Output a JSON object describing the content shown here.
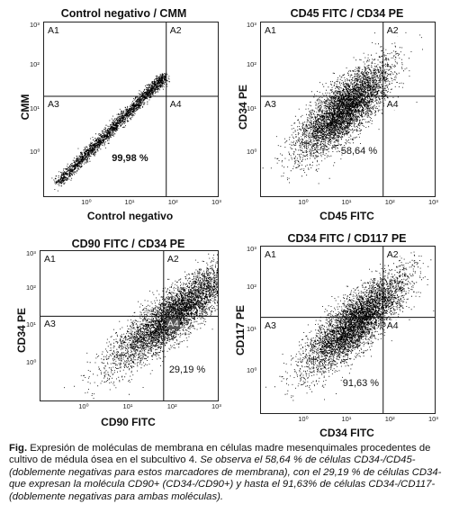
{
  "panels": [
    {
      "title": "Control negativo / CMM",
      "xlabel": "Control negativo",
      "ylabel": "CMM",
      "quadrants": [
        "A1",
        "A2",
        "A3",
        "A4"
      ],
      "percent": "99,98 %",
      "percent_quadrant": "A3",
      "y_ticks": [
        "10³",
        "10²",
        "10¹",
        "10⁰"
      ],
      "x_ticks": [
        "10⁰",
        "10¹",
        "10²",
        "10³"
      ]
    },
    {
      "title": "CD45 FITC / CD34 PE",
      "xlabel": "CD45 FITC",
      "ylabel": "CD34 PE",
      "quadrants": [
        "A1",
        "A2",
        "A3",
        "A4"
      ],
      "percent": "58,64 %",
      "percent_quadrant": "A3",
      "y_ticks": [
        "10³",
        "10²",
        "10¹",
        "10⁰"
      ],
      "x_ticks": [
        "10⁰",
        "10¹",
        "10²",
        "10³"
      ]
    },
    {
      "title": "CD90 FITC / CD34 PE",
      "xlabel": "CD90 FITC",
      "ylabel": "CD34 PE",
      "quadrants": [
        "A1",
        "A2",
        "A3",
        "A4"
      ],
      "percent": "29,19 %",
      "percent_quadrant": "A4",
      "y_ticks": [
        "10³",
        "10²",
        "10¹",
        "10⁰"
      ],
      "x_ticks": [
        "10⁰",
        "10¹",
        "10²",
        "10³"
      ]
    },
    {
      "title": "CD34 FITC / CD117 PE",
      "xlabel": "CD34 FITC",
      "ylabel": "CD117 PE",
      "quadrants": [
        "A1",
        "A2",
        "A3",
        "A4"
      ],
      "percent": "91,63 %",
      "percent_quadrant": "A3",
      "y_ticks": [
        "10³",
        "10²",
        "10¹",
        "10⁰"
      ],
      "x_ticks": [
        "10⁰",
        "10¹",
        "10²",
        "10³"
      ]
    }
  ],
  "caption": {
    "prefix": "Fig.",
    "normal": " Expresión  de moléculas de membrana en células madre mesenquimales procedentes de cultivo de médula ósea en el subcultivo 4. ",
    "italic": "Se observa el 58,64 % de células CD34-/CD45- (doblemente negativas para estos marcadores de membrana), con el 29,19 % de células CD34- que expresan la molécula CD90+ (CD34-/CD90+)  y hasta el 91,63% de células CD34-/CD117- (doblemente negativas para ambas moléculas)."
  },
  "chart_data": [
    {
      "type": "scatter",
      "title": "Control negativo / CMM",
      "xlabel": "Control negativo",
      "ylabel": "CMM",
      "scale": "log",
      "xlim": [
        0.1,
        1000
      ],
      "ylim": [
        0.1,
        1000
      ],
      "gate": {
        "x": 65,
        "y": 20
      },
      "population": {
        "shape": "diagonal",
        "x_range": [
          0.2,
          60
        ],
        "center": [
          1.5,
          1.5
        ]
      },
      "quadrant_percent": {
        "A3": 99.98
      }
    },
    {
      "type": "scatter",
      "title": "CD45 FITC / CD34 PE",
      "xlabel": "CD45 FITC",
      "ylabel": "CD34 PE",
      "scale": "log",
      "xlim": [
        0.1,
        1000
      ],
      "ylim": [
        0.1,
        1000
      ],
      "gate": {
        "x": 65,
        "y": 20
      },
      "population": {
        "shape": "cloud",
        "center": [
          8,
          10
        ],
        "spread": [
          1.6,
          1.6
        ]
      },
      "quadrant_percent": {
        "A3": 58.64
      }
    },
    {
      "type": "scatter",
      "title": "CD90 FITC / CD34 PE",
      "xlabel": "CD90 FITC",
      "ylabel": "CD34 PE",
      "scale": "log",
      "xlim": [
        0.1,
        1000
      ],
      "ylim": [
        0.1,
        1000
      ],
      "gate": {
        "x": 60,
        "y": 18
      },
      "population": {
        "shape": "cloud",
        "center": [
          100,
          20
        ],
        "spread": [
          2.2,
          2.0
        ]
      },
      "quadrant_percent": {
        "A4": 29.19
      }
    },
    {
      "type": "scatter",
      "title": "CD34 FITC / CD117 PE",
      "xlabel": "CD34 FITC",
      "ylabel": "CD117 PE",
      "scale": "log",
      "xlim": [
        0.1,
        1000
      ],
      "ylim": [
        0.1,
        1000
      ],
      "gate": {
        "x": 65,
        "y": 20
      },
      "population": {
        "shape": "cloud",
        "center": [
          15,
          15
        ],
        "spread": [
          1.8,
          1.8
        ]
      },
      "quadrant_percent": {
        "A3": 91.63
      }
    }
  ]
}
